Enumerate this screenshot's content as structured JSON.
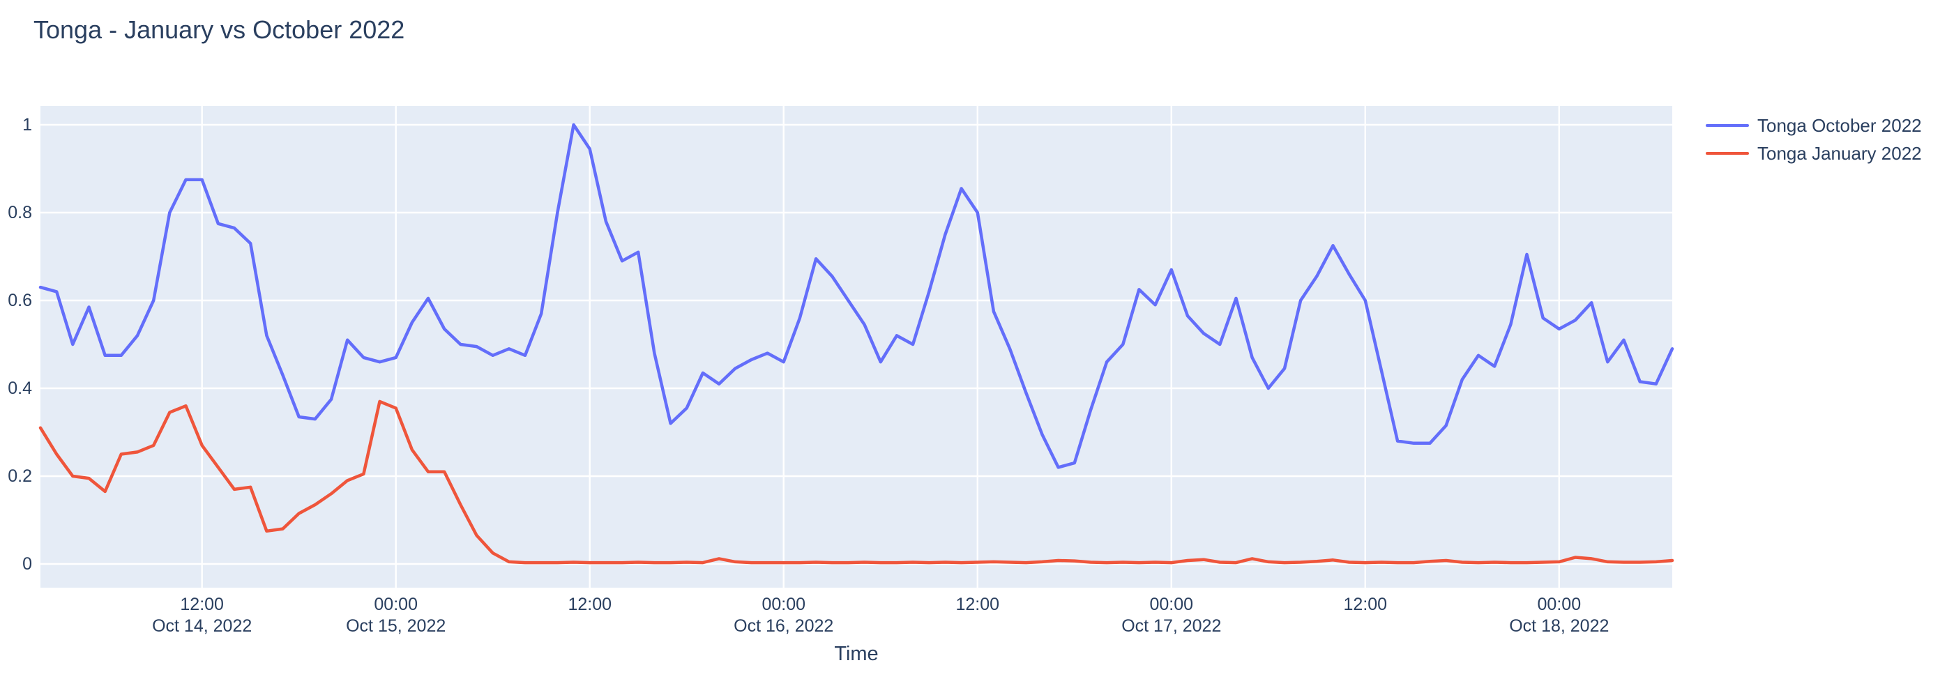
{
  "title": "Tonga - January vs October 2022",
  "chart_data": {
    "type": "line",
    "title": "Tonga - January vs October 2022",
    "xlabel": "Time",
    "ylabel": "",
    "x_start": "2022-10-14 02:00",
    "x_step_hours": 1,
    "ylim": [
      0,
      1
    ],
    "grid": true,
    "legend_position": "top-right",
    "plot_bg_color": "#E5ECF6",
    "grid_color": "#FFFFFF",
    "text_color": "#2a3f5f",
    "y_ticks": [
      {
        "value": 0.0,
        "label": "0"
      },
      {
        "value": 0.2,
        "label": "0.2"
      },
      {
        "value": 0.4,
        "label": "0.4"
      },
      {
        "value": 0.6,
        "label": "0.6"
      },
      {
        "value": 0.8,
        "label": "0.8"
      },
      {
        "value": 1.0,
        "label": "1"
      }
    ],
    "x_ticks": [
      {
        "hour": 10,
        "line1": "12:00",
        "line2": "Oct 14, 2022"
      },
      {
        "hour": 22,
        "line1": "00:00",
        "line2": "Oct 15, 2022"
      },
      {
        "hour": 34,
        "line1": "12:00",
        "line2": ""
      },
      {
        "hour": 46,
        "line1": "00:00",
        "line2": "Oct 16, 2022"
      },
      {
        "hour": 58,
        "line1": "12:00",
        "line2": ""
      },
      {
        "hour": 70,
        "line1": "00:00",
        "line2": "Oct 17, 2022"
      },
      {
        "hour": 82,
        "line1": "12:00",
        "line2": ""
      },
      {
        "hour": 94,
        "line1": "00:00",
        "line2": "Oct 18, 2022"
      }
    ],
    "series": [
      {
        "name": "Tonga October 2022",
        "color": "#636EFA",
        "values": [
          0.63,
          0.62,
          0.5,
          0.585,
          0.475,
          0.475,
          0.52,
          0.6,
          0.8,
          0.875,
          0.875,
          0.775,
          0.765,
          0.73,
          0.52,
          0.43,
          0.335,
          0.33,
          0.375,
          0.51,
          0.47,
          0.46,
          0.47,
          0.55,
          0.605,
          0.535,
          0.5,
          0.495,
          0.475,
          0.49,
          0.475,
          0.57,
          0.8,
          1.0,
          0.945,
          0.78,
          0.69,
          0.71,
          0.48,
          0.32,
          0.355,
          0.435,
          0.41,
          0.445,
          0.465,
          0.48,
          0.46,
          0.56,
          0.695,
          0.655,
          0.6,
          0.545,
          0.46,
          0.52,
          0.5,
          0.62,
          0.75,
          0.855,
          0.8,
          0.575,
          0.49,
          0.39,
          0.295,
          0.22,
          0.23,
          0.35,
          0.46,
          0.5,
          0.625,
          0.59,
          0.67,
          0.565,
          0.525,
          0.5,
          0.605,
          0.47,
          0.4,
          0.445,
          0.6,
          0.655,
          0.725,
          0.66,
          0.6,
          0.44,
          0.28,
          0.275,
          0.275,
          0.315,
          0.42,
          0.475,
          0.45,
          0.545,
          0.705,
          0.56,
          0.535,
          0.555,
          0.595,
          0.46,
          0.51,
          0.415,
          0.41,
          0.49
        ]
      },
      {
        "name": "Tonga January 2022",
        "color": "#EF553B",
        "values": [
          0.31,
          0.25,
          0.2,
          0.195,
          0.165,
          0.25,
          0.255,
          0.27,
          0.345,
          0.36,
          0.27,
          0.22,
          0.17,
          0.175,
          0.075,
          0.08,
          0.115,
          0.135,
          0.16,
          0.19,
          0.205,
          0.37,
          0.355,
          0.26,
          0.21,
          0.21,
          0.135,
          0.065,
          0.025,
          0.005,
          0.003,
          0.003,
          0.003,
          0.004,
          0.003,
          0.003,
          0.003,
          0.004,
          0.003,
          0.003,
          0.004,
          0.003,
          0.012,
          0.005,
          0.003,
          0.003,
          0.003,
          0.003,
          0.004,
          0.003,
          0.003,
          0.004,
          0.003,
          0.003,
          0.004,
          0.003,
          0.004,
          0.003,
          0.004,
          0.005,
          0.004,
          0.003,
          0.005,
          0.008,
          0.007,
          0.004,
          0.003,
          0.004,
          0.003,
          0.004,
          0.003,
          0.008,
          0.01,
          0.004,
          0.003,
          0.012,
          0.005,
          0.003,
          0.004,
          0.006,
          0.009,
          0.004,
          0.003,
          0.004,
          0.003,
          0.003,
          0.006,
          0.008,
          0.004,
          0.003,
          0.004,
          0.003,
          0.003,
          0.004,
          0.005,
          0.015,
          0.012,
          0.005,
          0.004,
          0.004,
          0.005,
          0.008
        ]
      }
    ]
  }
}
